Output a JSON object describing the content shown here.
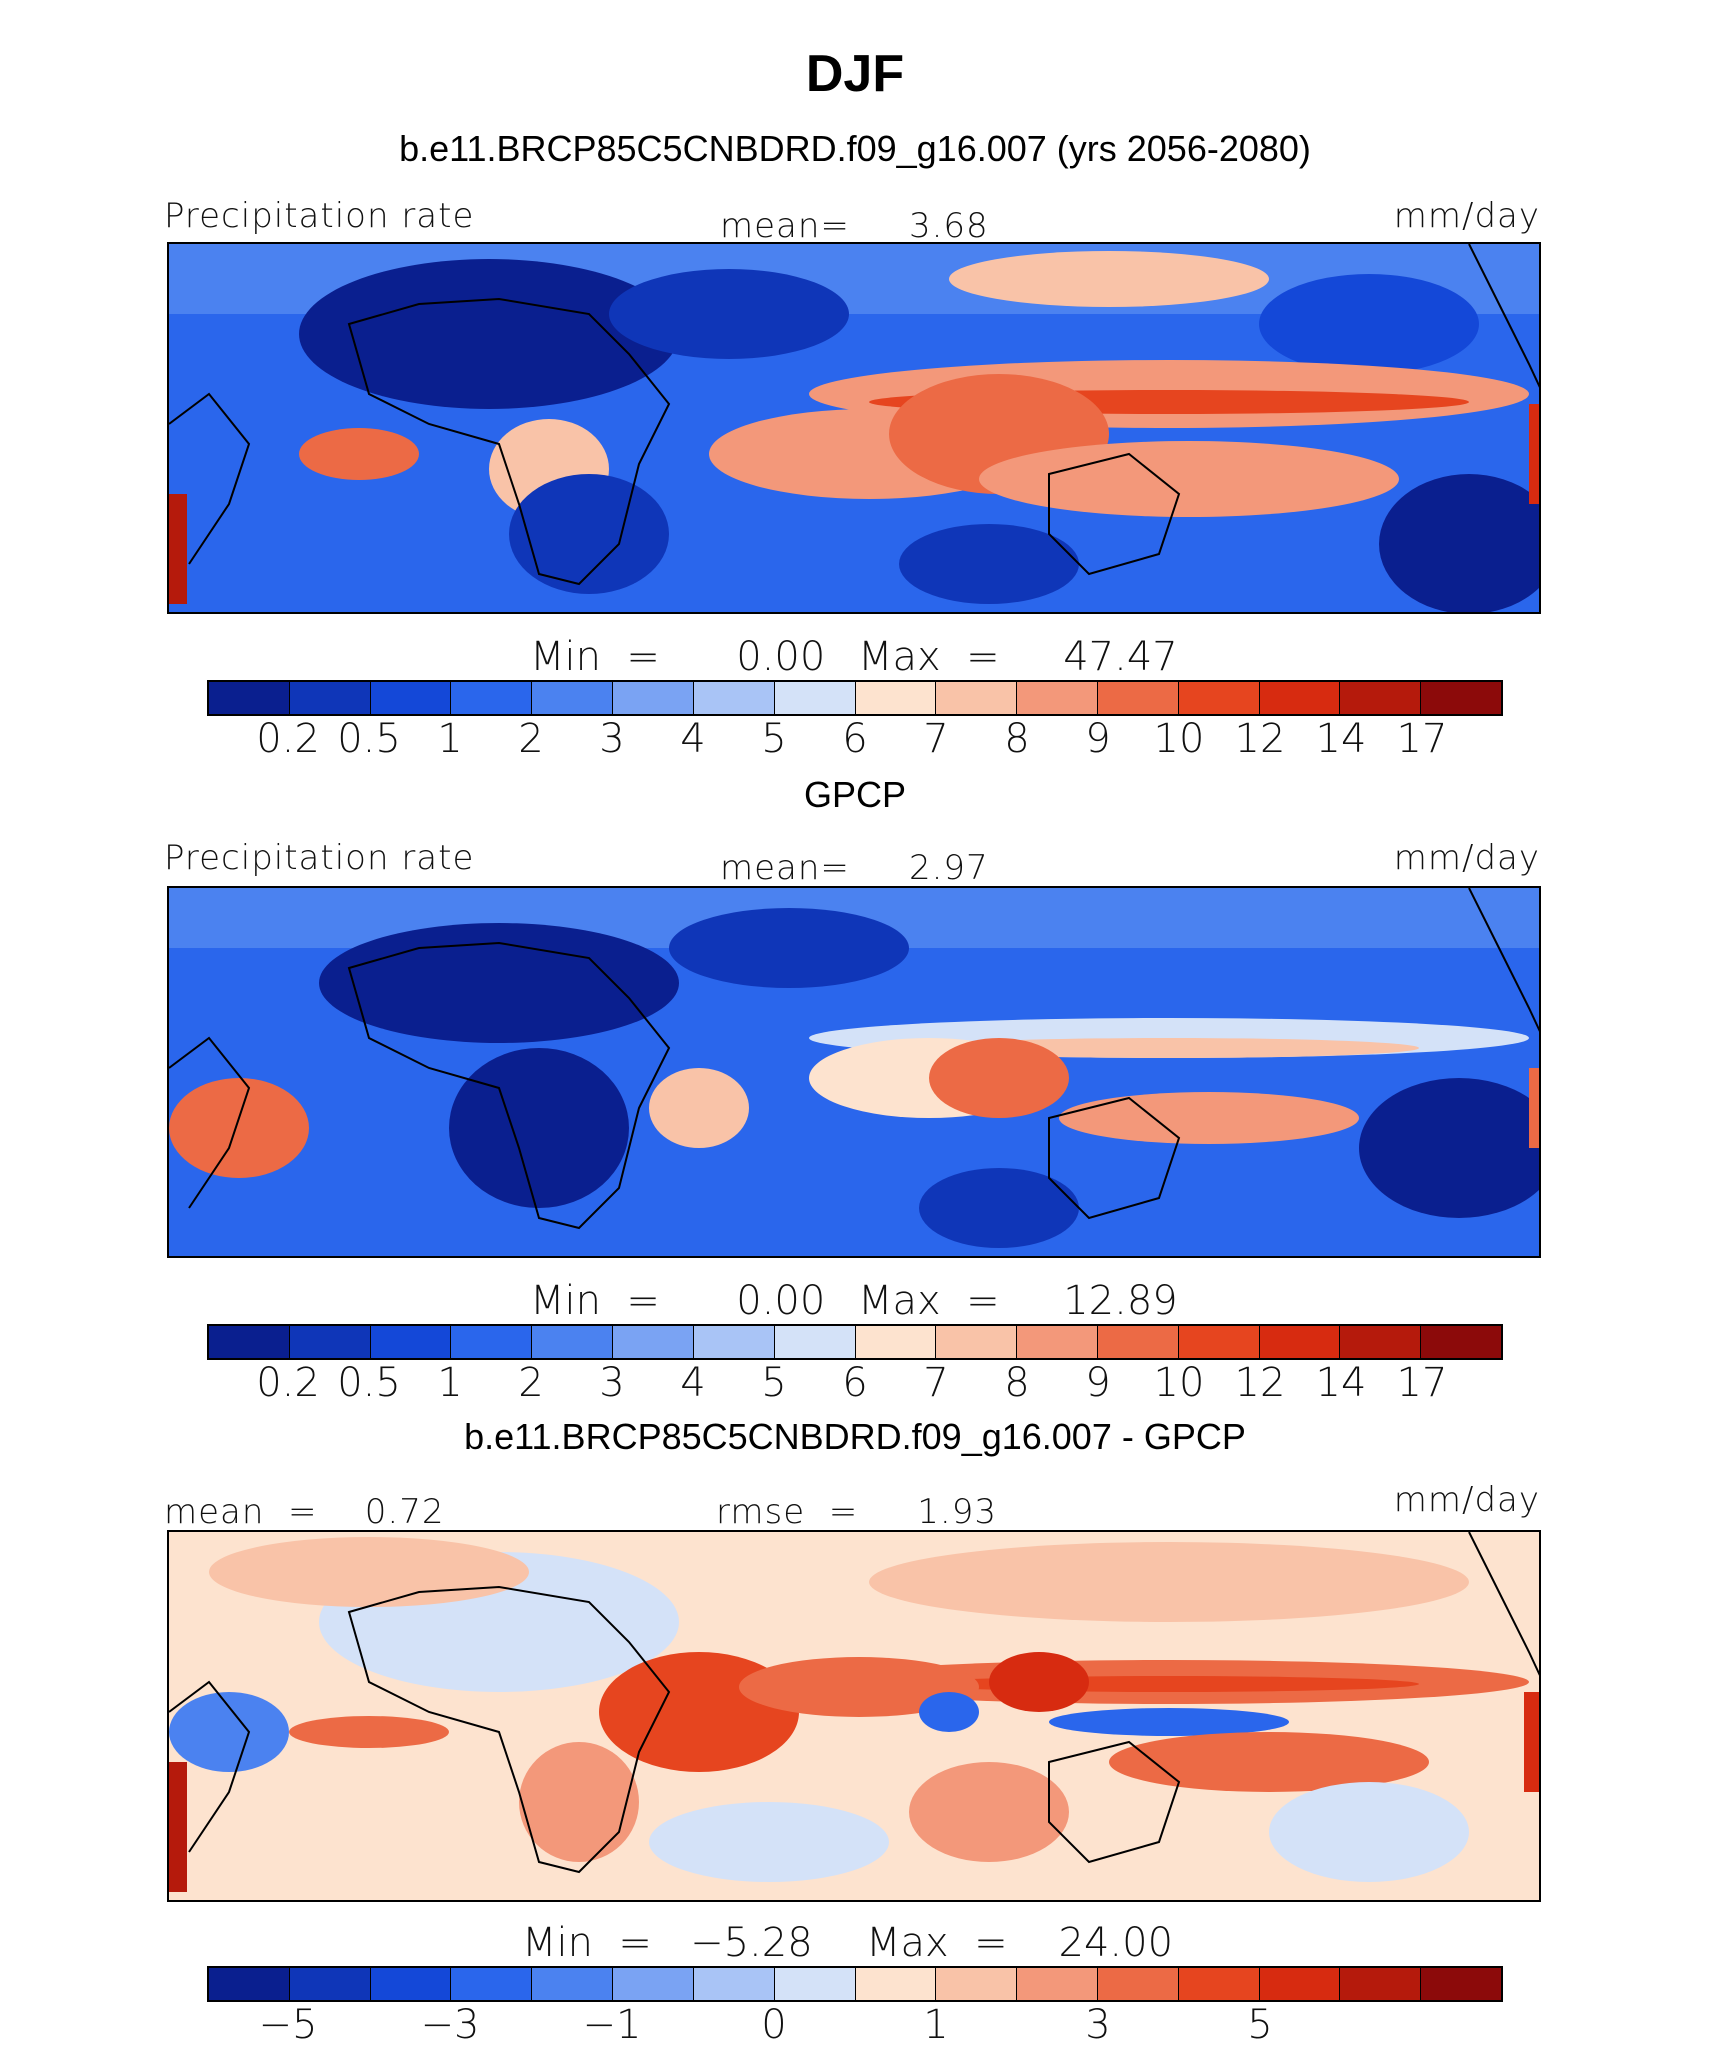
{
  "title": "DJF",
  "palette": [
    "#0a1f8f",
    "#0f36b8",
    "#1448d8",
    "#2a66ec",
    "#4b82f0",
    "#7aa3f3",
    "#a9c4f6",
    "#d4e2f8",
    "#fde3cf",
    "#f9c3a8",
    "#f3987a",
    "#ec6a45",
    "#e6451f",
    "#d72b10",
    "#b51a0c",
    "#8c0a0a"
  ],
  "chart_data": [
    {
      "type": "heatmap",
      "subtitle": "b.e11.BRCP85C5CNBDRD.f09_g16.007 (yrs 2056-2080)",
      "left_label": "Precipitation rate",
      "center_label": "mean=     3.68",
      "right_label": "mm/day",
      "mean": 3.68,
      "min_label": "Min  =      0.00",
      "max_label": "Max  =     47.47",
      "min": 0.0,
      "max": 47.47,
      "colorbar_ticks": [
        "0.2",
        "0.5",
        "1",
        "2",
        "3",
        "4",
        "5",
        "6",
        "7",
        "8",
        "9",
        "10",
        "12",
        "14",
        "17"
      ],
      "units": "mm/day"
    },
    {
      "type": "heatmap",
      "subtitle": "GPCP",
      "left_label": "Precipitation rate",
      "center_label": "mean=     2.97",
      "right_label": "mm/day",
      "mean": 2.97,
      "min_label": "Min  =      0.00",
      "max_label": "Max  =     12.89",
      "min": 0.0,
      "max": 12.89,
      "colorbar_ticks": [
        "0.2",
        "0.5",
        "1",
        "2",
        "3",
        "4",
        "5",
        "6",
        "7",
        "8",
        "9",
        "10",
        "12",
        "14",
        "17"
      ],
      "units": "mm/day"
    },
    {
      "type": "heatmap",
      "subtitle": "b.e11.BRCP85C5CNBDRD.f09_g16.007 - GPCP",
      "left_label": "mean  =    0.72",
      "center_label": "rmse  =     1.93",
      "right_label": "mm/day",
      "mean": 0.72,
      "rmse": 1.93,
      "min_label": "Min  =   −5.28",
      "max_label": "Max  =    24.00",
      "min": -5.28,
      "max": 24.0,
      "colorbar_ticks": [
        "−5",
        "",
        "−3",
        "",
        "−1",
        "",
        "0",
        "",
        "1",
        "",
        "3",
        "",
        "5",
        "",
        ""
      ],
      "units": "mm/day"
    }
  ]
}
